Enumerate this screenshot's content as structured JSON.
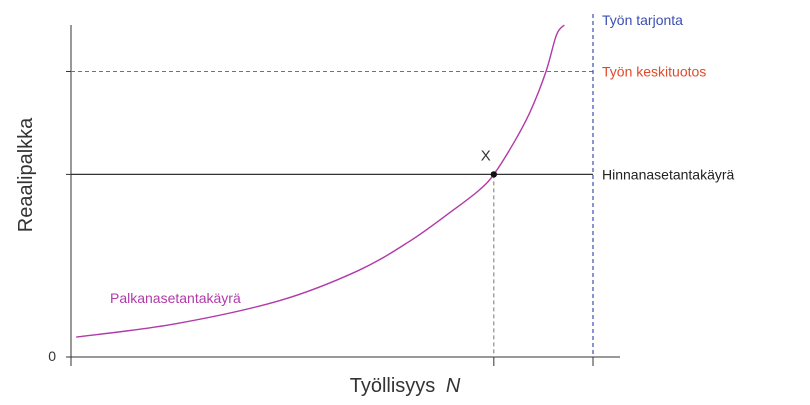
{
  "chart_data": {
    "type": "line",
    "title": "",
    "xlabel": "Työllisyys",
    "xlabel_var": "N",
    "ylabel": "Reaalipalkka",
    "origin_label": "0",
    "point_label": "X",
    "grid": false,
    "xlim": [
      0,
      1
    ],
    "ylim": [
      0,
      1
    ],
    "x_ticks": [
      0,
      0.81,
      1.0
    ],
    "y_ticks": [
      0,
      0.55,
      0.86
    ],
    "series": [
      {
        "name": "Palkanasetantakäyrä",
        "style": "curve",
        "color": "#b03aa8",
        "x": [
          0.01,
          0.2,
          0.4,
          0.55,
          0.65,
          0.73,
          0.78,
          0.81,
          0.85,
          0.88,
          0.91,
          0.93,
          0.945
        ],
        "y": [
          0.06,
          0.1,
          0.17,
          0.26,
          0.35,
          0.44,
          0.5,
          0.55,
          0.65,
          0.74,
          0.86,
          0.97,
          1.0
        ]
      },
      {
        "name": "Hinnanasetantakäyrä",
        "style": "solid-horizontal",
        "color": "#333333",
        "y": 0.55
      },
      {
        "name": "Työn keskituotos",
        "style": "dashed-horizontal",
        "color": "#e04a2a",
        "y": 0.86
      },
      {
        "name": "Työn tarjonta",
        "style": "dashed-vertical",
        "color": "#3a4fb0",
        "x": 1.0
      }
    ],
    "equilibrium": {
      "x": 0.81,
      "y": 0.55
    }
  }
}
